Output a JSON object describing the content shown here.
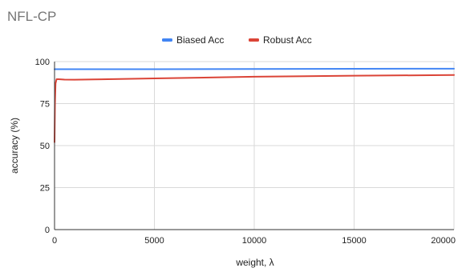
{
  "chart_data": {
    "type": "line",
    "title": "NFL-CP",
    "xlabel": "weight, λ",
    "ylabel": "accuracy (%)",
    "xlim": [
      0,
      20000
    ],
    "ylim": [
      0,
      100
    ],
    "xticks": [
      0,
      5000,
      10000,
      15000,
      20000
    ],
    "yticks": [
      0,
      25,
      50,
      75,
      100
    ],
    "grid": true,
    "legend_position": "top",
    "series": [
      {
        "name": "Biased Acc",
        "color": "#4285f4",
        "points": [
          [
            0,
            95.5
          ],
          [
            5000,
            95.5
          ],
          [
            10000,
            95.6
          ],
          [
            15000,
            95.7
          ],
          [
            20000,
            95.8
          ]
        ]
      },
      {
        "name": "Robust Acc",
        "color": "#db4437",
        "points": [
          [
            0,
            52
          ],
          [
            20,
            75
          ],
          [
            50,
            87
          ],
          [
            100,
            89.5
          ],
          [
            200,
            89.5
          ],
          [
            500,
            89.3
          ],
          [
            1000,
            89.2
          ],
          [
            2000,
            89.4
          ],
          [
            5000,
            90.0
          ],
          [
            10000,
            91.0
          ],
          [
            15000,
            91.6
          ],
          [
            20000,
            92.0
          ]
        ]
      }
    ]
  }
}
